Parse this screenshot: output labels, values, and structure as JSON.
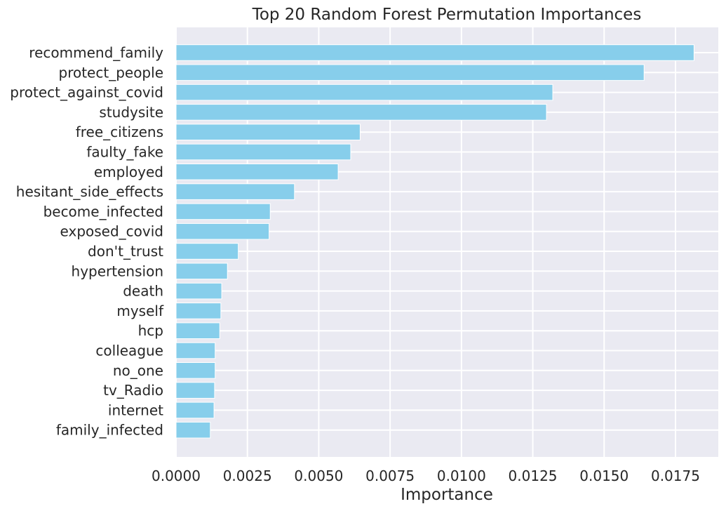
{
  "chart_data": {
    "type": "bar",
    "orientation": "horizontal",
    "title": "Top 20 Random Forest Permutation Importances",
    "xlabel": "Importance",
    "ylabel": "",
    "xlim": [
      0,
      0.019
    ],
    "xticks": [
      "0.0000",
      "0.0025",
      "0.0050",
      "0.0075",
      "0.0100",
      "0.0125",
      "0.0150",
      "0.0175"
    ],
    "xtick_values": [
      0,
      0.0025,
      0.005,
      0.0075,
      0.01,
      0.0125,
      0.015,
      0.0175
    ],
    "grid": true,
    "bar_color": "#87CEEB",
    "background_color": "#EAEAF2",
    "categories": [
      "recommend_family",
      "protect_people",
      "protect_against_covid",
      "studysite",
      "free_citizens",
      "faulty_fake",
      "employed",
      "hesitant_side_effects",
      "become_infected",
      "exposed_covid",
      "don't_trust",
      "hypertension",
      "death",
      "myself",
      "hcp",
      "colleague",
      "no_one",
      "tv_Radio",
      "internet",
      "family_infected"
    ],
    "values": [
      0.01815,
      0.0164,
      0.0132,
      0.01298,
      0.00645,
      0.00612,
      0.00568,
      0.00415,
      0.0033,
      0.00326,
      0.00218,
      0.0018,
      0.0016,
      0.00157,
      0.00153,
      0.00137,
      0.00137,
      0.00135,
      0.00133,
      0.0012
    ]
  }
}
